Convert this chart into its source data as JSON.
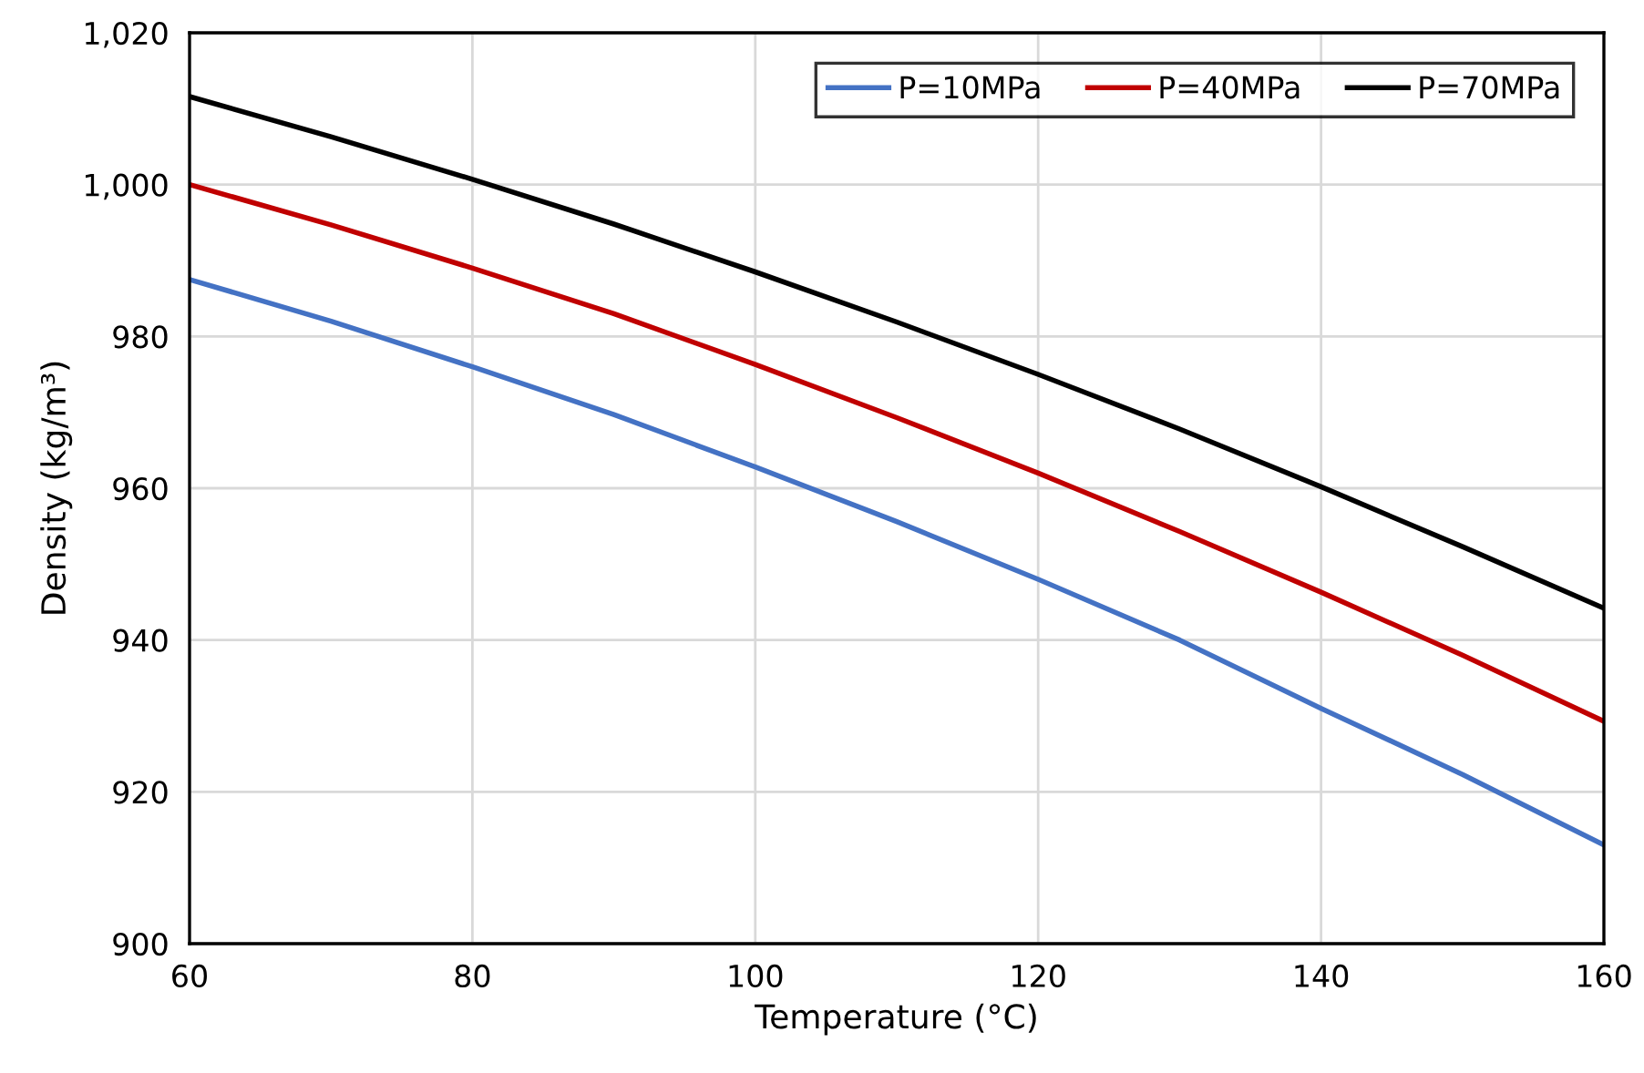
{
  "chart_data": {
    "type": "line",
    "xlabel": "Temperature (°C)",
    "ylabel": "Density (kg/m³)",
    "x": [
      60,
      70,
      80,
      90,
      100,
      110,
      120,
      130,
      140,
      150,
      160
    ],
    "series": [
      {
        "name": "P=10MPa",
        "color": "#4472c4",
        "values": [
          987.5,
          982,
          976,
          969.7,
          962.8,
          955.6,
          948,
          940,
          931,
          922.3,
          913
        ]
      },
      {
        "name": "P=40MPa",
        "color": "#c00000",
        "values": [
          1000,
          994.7,
          989,
          983,
          976.3,
          969.3,
          962,
          954.3,
          946.3,
          938,
          929.3
        ]
      },
      {
        "name": "P=70MPa",
        "color": "#000000",
        "values": [
          1011.6,
          1006.3,
          1000.7,
          994.8,
          988.5,
          981.9,
          975,
          967.8,
          960.2,
          952.3,
          944.2
        ]
      }
    ],
    "xlim": [
      60,
      160
    ],
    "xticks": [
      60,
      80,
      100,
      120,
      140,
      160
    ],
    "ylim": [
      900,
      1020
    ],
    "yticks": [
      900,
      920,
      940,
      960,
      980,
      {
        "value": 1000,
        "label": "1,000"
      },
      {
        "value": 1020,
        "label": "1,020"
      }
    ],
    "grid": true,
    "legend": "top right",
    "marker": "none",
    "line_style": "solid"
  }
}
